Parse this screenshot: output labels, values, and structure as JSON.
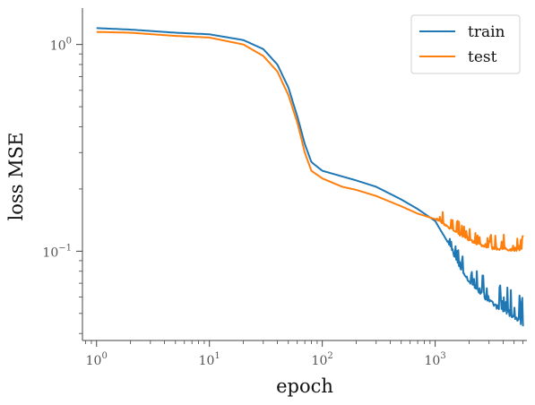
{
  "chart_data": {
    "type": "line",
    "title": "",
    "xlabel": "epoch",
    "ylabel": "loss MSE",
    "xscale": "log",
    "yscale": "log",
    "xlim": [
      0.75,
      6500
    ],
    "ylim": [
      0.037,
      1.5
    ],
    "grid": false,
    "legend_position": "top-right",
    "x_ticks": [
      {
        "base": "10",
        "exp": "0"
      },
      {
        "base": "10",
        "exp": "1"
      },
      {
        "base": "10",
        "exp": "2"
      },
      {
        "base": "10",
        "exp": "3"
      }
    ],
    "y_ticks": [
      {
        "base": "10",
        "exp": "0"
      },
      {
        "base": "10",
        "exp": "−1"
      }
    ],
    "series": [
      {
        "name": "train",
        "color": "#1f77b4",
        "x": [
          1,
          2,
          5,
          10,
          20,
          30,
          40,
          50,
          60,
          70,
          80,
          100,
          150,
          200,
          300,
          500,
          700,
          1000,
          1300,
          1600,
          2000,
          2500,
          3000,
          4000,
          5000,
          6000
        ],
        "y": [
          1.2,
          1.18,
          1.14,
          1.12,
          1.05,
          0.95,
          0.8,
          0.62,
          0.45,
          0.33,
          0.27,
          0.245,
          0.23,
          0.22,
          0.205,
          0.178,
          0.16,
          0.14,
          0.11,
          0.085,
          0.07,
          0.062,
          0.056,
          0.05,
          0.047,
          0.043
        ],
        "noise_from_x": 1300,
        "noise_spike_max": 0.018
      },
      {
        "name": "test",
        "color": "#ff7f0e",
        "x": [
          1,
          2,
          5,
          10,
          20,
          30,
          40,
          50,
          60,
          70,
          80,
          100,
          150,
          200,
          300,
          500,
          700,
          1000,
          1300,
          1600,
          2000,
          2500,
          3000,
          4000,
          5000,
          6000
        ],
        "y": [
          1.15,
          1.14,
          1.1,
          1.08,
          1.0,
          0.88,
          0.74,
          0.57,
          0.42,
          0.3,
          0.245,
          0.225,
          0.205,
          0.198,
          0.185,
          0.165,
          0.152,
          0.143,
          0.13,
          0.12,
          0.112,
          0.106,
          0.102,
          0.101,
          0.1,
          0.1
        ],
        "noise_from_x": 1000,
        "noise_spike_max": 0.02
      }
    ]
  }
}
